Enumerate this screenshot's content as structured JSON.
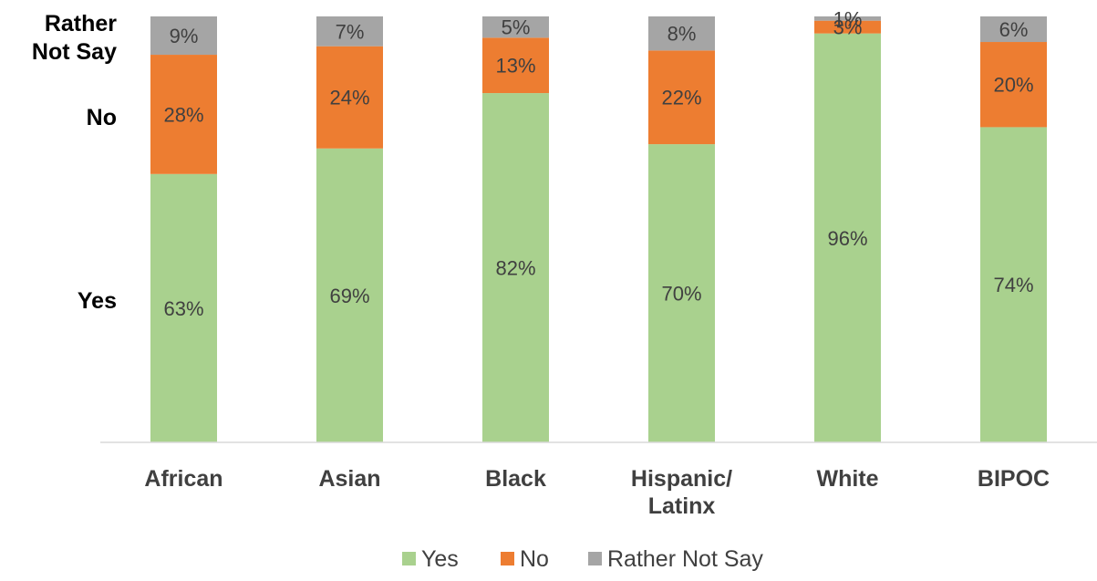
{
  "chart_data": {
    "type": "bar",
    "stacked": true,
    "categories": [
      [
        "African"
      ],
      [
        "Asian"
      ],
      [
        "Black"
      ],
      [
        "Hispanic/",
        "Latinx"
      ],
      [
        "White"
      ],
      [
        "BIPOC"
      ]
    ],
    "series": [
      {
        "name": "Yes",
        "color": "#a9d18e",
        "values": [
          63,
          69,
          82,
          70,
          96,
          74
        ]
      },
      {
        "name": "No",
        "color": "#ed7d31",
        "values": [
          28,
          24,
          13,
          22,
          3,
          20
        ]
      },
      {
        "name": "Rather Not Say",
        "color": "#a5a5a5",
        "values": [
          9,
          7,
          5,
          8,
          1,
          6
        ]
      }
    ],
    "value_suffix": "%",
    "ylim": [
      0,
      100
    ],
    "y_category_labels": [
      [
        "Yes"
      ],
      [
        "No"
      ],
      [
        "Rather",
        "Not Say"
      ]
    ],
    "legend_position": "bottom",
    "grid": false
  }
}
